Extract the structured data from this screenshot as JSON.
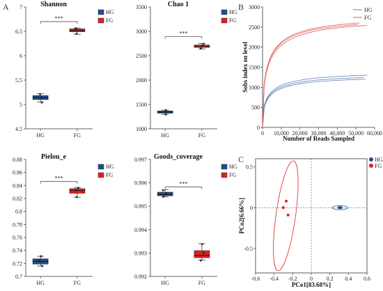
{
  "figure": {
    "panel_labels": [
      "A",
      "B",
      "C"
    ]
  },
  "colors": {
    "HG": "#1f4e8c",
    "FG": "#e02020",
    "HG_line": "#5b7fb5",
    "FG_line": "#e05a5a"
  },
  "chart_data": [
    {
      "type": "box",
      "title": "Shannon",
      "categories": [
        "HG",
        "FG"
      ],
      "ylim": [
        4.5,
        7.0
      ],
      "yticks": [
        "4.5",
        "5",
        "5.5",
        "6",
        "6.5",
        "7"
      ],
      "ytick_values": [
        4.5,
        5.0,
        5.5,
        6.0,
        6.5,
        7.0
      ],
      "legend": [
        "HG",
        "FG"
      ],
      "significance": "***",
      "boxes": [
        {
          "name": "HG",
          "whisker_low": 5.05,
          "q1": 5.1,
          "median": 5.14,
          "q3": 5.18,
          "whisker_high": 5.22,
          "points": [
            5.04,
            5.14,
            5.21
          ]
        },
        {
          "name": "FG",
          "whisker_low": 6.44,
          "q1": 6.49,
          "median": 6.52,
          "q3": 6.55,
          "whisker_high": 6.57,
          "points": [
            6.45,
            6.53,
            6.56
          ]
        }
      ],
      "sig_y": 6.7
    },
    {
      "type": "box",
      "title": "Chao 1",
      "categories": [
        "HG",
        "FG"
      ],
      "ylim": [
        1000,
        3500
      ],
      "yticks": [
        "1000",
        "1500",
        "2000",
        "2500",
        "3000",
        "3500"
      ],
      "ytick_values": [
        1000,
        1500,
        2000,
        2500,
        3000,
        3500
      ],
      "legend": [
        "HG",
        "FG"
      ],
      "significance": "***",
      "boxes": [
        {
          "name": "HG",
          "whisker_low": 1290,
          "q1": 1320,
          "median": 1345,
          "q3": 1365,
          "whisker_high": 1385,
          "points": [
            1295,
            1350,
            1380
          ]
        },
        {
          "name": "FG",
          "whisker_low": 2640,
          "q1": 2670,
          "median": 2690,
          "q3": 2720,
          "whisker_high": 2750,
          "points": [
            2645,
            2700,
            2745
          ]
        }
      ],
      "sig_y": 2890
    },
    {
      "type": "box",
      "title": "Pielou_e",
      "categories": [
        "HG",
        "FG"
      ],
      "ylim": [
        0.7,
        0.88
      ],
      "yticks": [
        "0.7",
        "0.72",
        "0.74",
        "0.76",
        "0.78",
        "0.8",
        "0.82",
        "0.84",
        "0.86",
        "0.88"
      ],
      "ytick_values": [
        0.7,
        0.72,
        0.74,
        0.76,
        0.78,
        0.8,
        0.82,
        0.84,
        0.86,
        0.88
      ],
      "legend": [
        "HG",
        "FG"
      ],
      "significance": "***",
      "boxes": [
        {
          "name": "HG",
          "whisker_low": 0.716,
          "q1": 0.719,
          "median": 0.723,
          "q3": 0.727,
          "whisker_high": 0.731,
          "points": [
            0.716,
            0.724,
            0.731
          ]
        },
        {
          "name": "FG",
          "whisker_low": 0.822,
          "q1": 0.828,
          "median": 0.832,
          "q3": 0.835,
          "whisker_high": 0.837,
          "points": [
            0.822,
            0.833,
            0.836
          ]
        }
      ],
      "sig_y": 0.846
    },
    {
      "type": "box",
      "title": "Goods_coverage",
      "categories": [
        "HG",
        "FG"
      ],
      "ylim": [
        0.992,
        0.997
      ],
      "yticks": [
        "0.992",
        "0.993",
        "0.994",
        "0.995",
        "0.996",
        "0.997"
      ],
      "ytick_values": [
        0.992,
        0.993,
        0.994,
        0.995,
        0.996,
        0.997
      ],
      "legend": [
        "HG",
        "FG"
      ],
      "significance": "***",
      "boxes": [
        {
          "name": "HG",
          "whisker_low": 0.9954,
          "q1": 0.99545,
          "median": 0.9955,
          "q3": 0.9956,
          "whisker_high": 0.9957,
          "points": [
            0.9954,
            0.99555,
            0.99568
          ]
        },
        {
          "name": "FG",
          "whisker_low": 0.9927,
          "q1": 0.9928,
          "median": 0.9929,
          "q3": 0.9931,
          "whisker_high": 0.9934,
          "points": [
            0.99268,
            0.993,
            0.99338
          ]
        }
      ],
      "sig_y": 0.99582
    },
    {
      "type": "line",
      "panel": "B",
      "xlabel": "Number of Reads Sampled",
      "ylabel": "Sobs index on level",
      "xlim": [
        0,
        60000
      ],
      "ylim": [
        0,
        3000
      ],
      "xticks": [
        "0",
        "10,000",
        "20,000",
        "30,000",
        "40,000",
        "50,000",
        "60,000"
      ],
      "xtick_values": [
        0,
        10000,
        20000,
        30000,
        40000,
        50000,
        60000
      ],
      "yticks": [
        "0",
        "500",
        "1000",
        "1500",
        "2000",
        "2500",
        "3000"
      ],
      "ytick_values": [
        0,
        500,
        1000,
        1500,
        2000,
        2500,
        3000
      ],
      "legend": [
        "HG",
        "FG"
      ],
      "series": [
        {
          "name": "HG",
          "curves": [
            {
              "xmax": 56000,
              "ymax": 1300
            },
            {
              "xmax": 54000,
              "ymax": 1240
            },
            {
              "xmax": 55000,
              "ymax": 1200
            }
          ]
        },
        {
          "name": "FG",
          "curves": [
            {
              "xmax": 52000,
              "ymax": 2600
            },
            {
              "xmax": 51000,
              "ymax": 2560
            },
            {
              "xmax": 56000,
              "ymax": 2540
            }
          ]
        }
      ]
    },
    {
      "type": "scatter",
      "panel": "C",
      "xlabel": "PCo1[83.68%]",
      "ylabel": "PCo2[6.66%]",
      "xlim": [
        -0.6,
        0.6
      ],
      "ylim": [
        -0.8,
        0.6
      ],
      "xticks": [
        "-0.6",
        "-0.4",
        "-0.2",
        "0",
        "0.2",
        "0.4",
        "0.6"
      ],
      "xtick_values": [
        -0.6,
        -0.4,
        -0.2,
        0,
        0.2,
        0.4,
        0.6
      ],
      "yticks": [
        "-0.5",
        "0",
        "0.5"
      ],
      "ytick_values": [
        -0.5,
        0,
        0.5
      ],
      "legend": [
        "HG",
        "FG"
      ],
      "series": [
        {
          "name": "HG",
          "points": [
            [
              0.3,
              0.0
            ],
            [
              0.32,
              0.0
            ],
            [
              0.31,
              0.0
            ]
          ],
          "ellipse": {
            "cx": 0.31,
            "cy": 0.0,
            "rx": 0.085,
            "ry": 0.025,
            "angle": 0
          }
        },
        {
          "name": "FG",
          "points": [
            [
              -0.27,
              0.08
            ],
            [
              -0.3,
              0.0
            ],
            [
              -0.25,
              -0.09
            ]
          ],
          "ellipse": {
            "cx": -0.275,
            "cy": -0.1,
            "rx": 0.105,
            "ry": 0.68,
            "angle": 8
          }
        }
      ]
    }
  ]
}
